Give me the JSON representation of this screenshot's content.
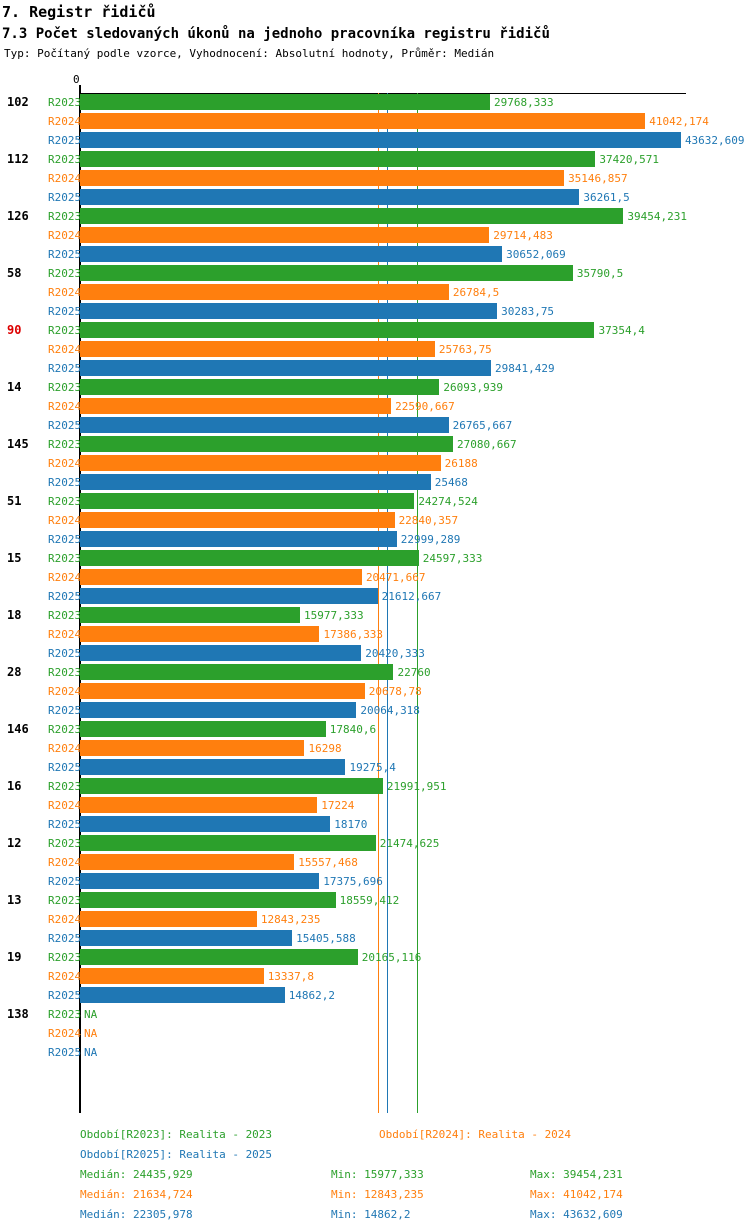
{
  "header": {
    "title": "7. Registr řidičů",
    "subtitle": "7.3 Počet sledovaných úkonů na jednoho pracovníka registru řidičů",
    "meta": "Typ: Počítaný podle vzorce, Vyhodnocení: Absolutní hodnoty, Průměr: Medián"
  },
  "colors": {
    "r2023": "#2ca02c",
    "r2024": "#ff7f0e",
    "r2025": "#1f77b4",
    "axis": "#000000",
    "highlight_label": "#dd0000"
  },
  "chart_data": {
    "type": "bar",
    "orientation": "horizontal",
    "title": "7.3 Počet sledovaných úkonů na jednoho pracovníka registru řidičů",
    "xlabel": "",
    "ylabel": "",
    "axis": {
      "zero_label": "0",
      "x_min": 0,
      "x_max_estimate": 44000,
      "grid": false
    },
    "series": [
      {
        "label": "R2023",
        "color": "#2ca02c"
      },
      {
        "label": "R2024",
        "color": "#ff7f0e"
      },
      {
        "label": "R2025",
        "color": "#1f77b4"
      }
    ],
    "median_lines": [
      {
        "series": "R2023",
        "value": 24435.929,
        "color": "#2ca02c"
      },
      {
        "series": "R2024",
        "value": 21634.724,
        "color": "#ff7f0e"
      },
      {
        "series": "R2025",
        "value": 22305.978,
        "color": "#1f77b4"
      }
    ],
    "groups": [
      {
        "label": "102",
        "highlight": false,
        "values": [
          29768.333,
          41042.174,
          43632.609
        ],
        "value_labels": [
          "29768,333",
          "41042,174",
          "43632,609"
        ]
      },
      {
        "label": "112",
        "highlight": false,
        "values": [
          37420.571,
          35146.857,
          36261.5
        ],
        "value_labels": [
          "37420,571",
          "35146,857",
          "36261,5"
        ]
      },
      {
        "label": "126",
        "highlight": false,
        "values": [
          39454.231,
          29714.483,
          30652.069
        ],
        "value_labels": [
          "39454,231",
          "29714,483",
          "30652,069"
        ]
      },
      {
        "label": "58",
        "highlight": false,
        "values": [
          35790.5,
          26784.5,
          30283.75
        ],
        "value_labels": [
          "35790,5",
          "26784,5",
          "30283,75"
        ]
      },
      {
        "label": "90",
        "highlight": true,
        "values": [
          37354.4,
          25763.75,
          29841.429
        ],
        "value_labels": [
          "37354,4",
          "25763,75",
          "29841,429"
        ]
      },
      {
        "label": "14",
        "highlight": false,
        "values": [
          26093.939,
          22590.667,
          26765.667
        ],
        "value_labels": [
          "26093,939",
          "22590,667",
          "26765,667"
        ]
      },
      {
        "label": "145",
        "highlight": false,
        "values": [
          27080.667,
          26188,
          25468
        ],
        "value_labels": [
          "27080,667",
          "26188",
          "25468"
        ]
      },
      {
        "label": "51",
        "highlight": false,
        "values": [
          24274.524,
          22840.357,
          22999.289
        ],
        "value_labels": [
          "24274,524",
          "22840,357",
          "22999,289"
        ]
      },
      {
        "label": "15",
        "highlight": false,
        "values": [
          24597.333,
          20471.667,
          21612.667
        ],
        "value_labels": [
          "24597,333",
          "20471,667",
          "21612,667"
        ]
      },
      {
        "label": "18",
        "highlight": false,
        "values": [
          15977.333,
          17386.333,
          20420.333
        ],
        "value_labels": [
          "15977,333",
          "17386,333",
          "20420,333"
        ]
      },
      {
        "label": "28",
        "highlight": false,
        "values": [
          22760,
          20678.78,
          20064.318
        ],
        "value_labels": [
          "22760",
          "20678,78",
          "20064,318"
        ]
      },
      {
        "label": "146",
        "highlight": false,
        "values": [
          17840.6,
          16298,
          19275.4
        ],
        "value_labels": [
          "17840,6",
          "16298",
          "19275,4"
        ]
      },
      {
        "label": "16",
        "highlight": false,
        "values": [
          21991.951,
          17224,
          18170
        ],
        "value_labels": [
          "21991,951",
          "17224",
          "18170"
        ]
      },
      {
        "label": "12",
        "highlight": false,
        "values": [
          21474.625,
          15557.468,
          17375.696
        ],
        "value_labels": [
          "21474,625",
          "15557,468",
          "17375,696"
        ]
      },
      {
        "label": "13",
        "highlight": false,
        "values": [
          18559.412,
          12843.235,
          15405.588
        ],
        "value_labels": [
          "18559,412",
          "12843,235",
          "15405,588"
        ]
      },
      {
        "label": "19",
        "highlight": false,
        "values": [
          20165.116,
          13337.8,
          14862.2
        ],
        "value_labels": [
          "20165,116",
          "13337,8",
          "14862,2"
        ]
      },
      {
        "label": "138",
        "highlight": false,
        "values": [
          null,
          null,
          null
        ],
        "value_labels": [
          "NA",
          "NA",
          "NA"
        ]
      }
    ],
    "legend_position": "bottom"
  },
  "legend": {
    "r2023": "Období[R2023]: Realita - 2023",
    "r2024": "Období[R2024]: Realita - 2024",
    "r2025": "Období[R2025]: Realita - 2025"
  },
  "stats": [
    {
      "series": "R2023",
      "color": "#2ca02c",
      "median": "Medián: 24435,929",
      "min": "Min: 15977,333",
      "max": "Max: 39454,231"
    },
    {
      "series": "R2024",
      "color": "#ff7f0e",
      "median": "Medián: 21634,724",
      "min": "Min: 12843,235",
      "max": "Max: 41042,174"
    },
    {
      "series": "R2025",
      "color": "#1f77b4",
      "median": "Medián: 22305,978",
      "min": "Min: 14862,2",
      "max": "Max: 43632,609"
    }
  ]
}
